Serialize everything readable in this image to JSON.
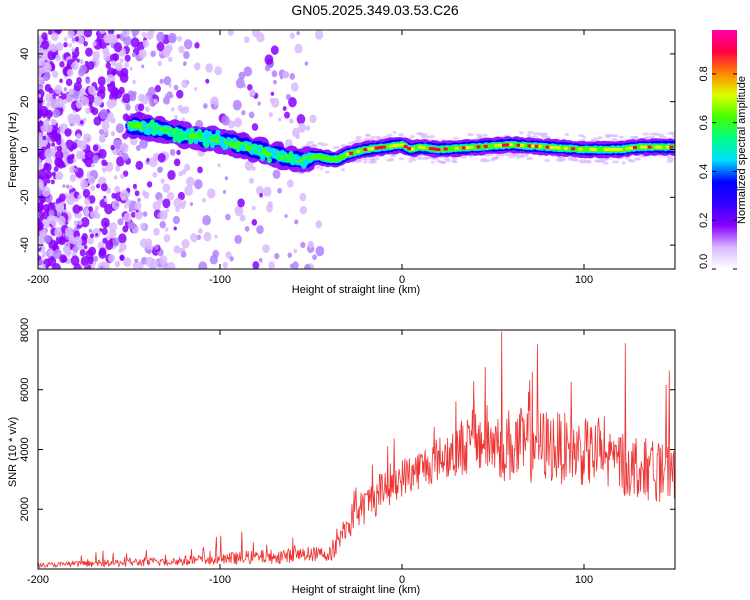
{
  "title": "GN05.2025.349.03.53.C26",
  "chart_data": [
    {
      "type": "heatmap",
      "name": "spectrogram",
      "xlabel": "Height of straight line (km)",
      "ylabel": "Frequency (Hz)",
      "xlim": [
        -200,
        150
      ],
      "ylim": [
        -50,
        50
      ],
      "xticks": [
        -200,
        -100,
        0,
        100
      ],
      "yticks": [
        -40,
        -20,
        0,
        20,
        40
      ],
      "ridge": [
        [
          -145,
          10
        ],
        [
          -130,
          8
        ],
        [
          -120,
          6
        ],
        [
          -110,
          5
        ],
        [
          -100,
          4
        ],
        [
          -90,
          2
        ],
        [
          -80,
          0
        ],
        [
          -70,
          -2
        ],
        [
          -60,
          -4
        ],
        [
          -55,
          -5
        ],
        [
          -50,
          -3
        ],
        [
          -45,
          -3
        ],
        [
          -40,
          -4
        ],
        [
          -35,
          -4
        ],
        [
          -30,
          -2
        ],
        [
          -20,
          0
        ],
        [
          -10,
          1
        ],
        [
          0,
          2
        ],
        [
          5,
          0
        ],
        [
          10,
          1
        ],
        [
          20,
          0
        ],
        [
          40,
          1
        ],
        [
          60,
          2
        ],
        [
          80,
          1
        ],
        [
          100,
          0
        ],
        [
          120,
          0
        ],
        [
          130,
          1
        ],
        [
          150,
          1
        ]
      ],
      "colorbar": {
        "label": "Normalized spectral amplitude",
        "ticks": [
          "0.0",
          "0.2",
          "0.4",
          "0.6",
          "0.8"
        ],
        "colors": [
          "#ffffff",
          "#d8b8ff",
          "#8800ff",
          "#3300ff",
          "#0000ff",
          "#00ddff",
          "#00ff88",
          "#44ff00",
          "#ddff00",
          "#ff8800",
          "#ff0044",
          "#ff00aa"
        ]
      }
    },
    {
      "type": "line",
      "name": "snr",
      "xlabel": "Height of straight line (km)",
      "ylabel": "SNR (10 * v/v)",
      "xlim": [
        -200,
        150
      ],
      "ylim": [
        0,
        8000
      ],
      "xticks": [
        -200,
        -100,
        0,
        100
      ],
      "yticks": [
        2000,
        4000,
        6000,
        8000
      ],
      "color": "#ee3333",
      "series_envelope": [
        {
          "x": -200,
          "base": 120,
          "noise": 150
        },
        {
          "x": -120,
          "base": 250,
          "noise": 350
        },
        {
          "x": -70,
          "base": 400,
          "noise": 500
        },
        {
          "x": -37,
          "base": 500,
          "noise": 500
        },
        {
          "x": -36,
          "base": 900,
          "noise": 900
        },
        {
          "x": -25,
          "base": 1800,
          "noise": 1200
        },
        {
          "x": -10,
          "base": 2600,
          "noise": 1400
        },
        {
          "x": 0,
          "base": 3000,
          "noise": 1300
        },
        {
          "x": 20,
          "base": 3600,
          "noise": 1500
        },
        {
          "x": 40,
          "base": 4200,
          "noise": 2200
        },
        {
          "x": 60,
          "base": 4000,
          "noise": 2600
        },
        {
          "x": 80,
          "base": 4000,
          "noise": 2500
        },
        {
          "x": 100,
          "base": 3800,
          "noise": 2300
        },
        {
          "x": 130,
          "base": 3300,
          "noise": 2200
        },
        {
          "x": 150,
          "base": 3000,
          "noise": 1800
        }
      ]
    }
  ]
}
